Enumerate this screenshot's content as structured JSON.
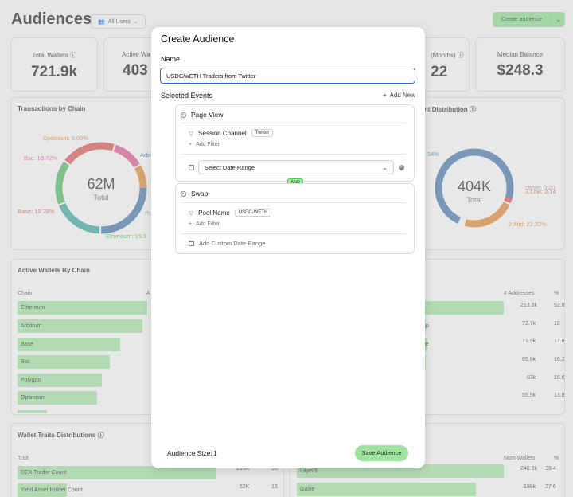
{
  "page": {
    "title": "Audiences",
    "filter_label": "All Users",
    "create_label": "Create audience"
  },
  "stats": [
    {
      "label": "Total Wallets",
      "value": "721.9k"
    },
    {
      "label": "Active Wa",
      "value": "403"
    },
    {
      "label": "(Months)",
      "value": "22"
    },
    {
      "label": "Median Balance",
      "value": "$248.3"
    }
  ],
  "tx_chart": {
    "title": "Transactions by Chain",
    "center_value": "62M",
    "center_label": "Total",
    "labels": [
      "Optimism: 9.00%",
      "Bsc: 16.72%",
      "Base: 19.78%",
      "Ethereum: 15.9",
      "Arbi",
      "Po"
    ]
  },
  "dist_chart": {
    "title": "nt Distribution",
    "center_value": "404K",
    "center_label": "Total",
    "labels": [
      "34%",
      "Other: 0.20",
      "3.Low: 2.14",
      "2.Mid: 22.32%"
    ]
  },
  "active_wallets": {
    "title": "Active Wallets By Chain",
    "col_chain": "Chain",
    "col_a": "A",
    "rows": [
      "Ethereum",
      "Arbitrum",
      "Base",
      "Bsc",
      "Polygon",
      "Optimism"
    ]
  },
  "right_table": {
    "col_addresses": "# Addresses",
    "col_pct": "%",
    "rows": [
      {
        "label": "",
        "addresses": "213.3k",
        "pct": "52.8"
      },
      {
        "label": "ap",
        "addresses": "72.7k",
        "pct": "18"
      },
      {
        "label": "ge",
        "addresses": "71.9k",
        "pct": "17.8"
      },
      {
        "label": "",
        "addresses": "65.6k",
        "pct": "16.2"
      },
      {
        "label": "",
        "addresses": "63k",
        "pct": "15.6"
      },
      {
        "label": "",
        "addresses": "55.9k",
        "pct": "13.8"
      }
    ]
  },
  "traits": {
    "title": "Wallet Traits Distributions",
    "col_trait": "Trait",
    "rows": [
      {
        "label": "DEX Trader Count",
        "count": "213K",
        "pct": "53"
      },
      {
        "label": "Yield Asset Holder Count",
        "count": "52K",
        "pct": "13"
      }
    ]
  },
  "wallets_table": {
    "col_num": "Num Wallets",
    "col_pct": "%",
    "rows": [
      {
        "label": "Layer3",
        "num": "240.9k",
        "pct": "33.4"
      },
      {
        "label": "Galxe",
        "num": "199k",
        "pct": "27.6"
      }
    ]
  },
  "modal": {
    "title": "Create Audience",
    "name_label": "Name",
    "name_value": "USDC/wETH Traders from Twitter",
    "selected_events_label": "Selected Events",
    "add_new_label": "Add New",
    "event1": {
      "name": "Page View",
      "filter_name": "Session Channel",
      "filter_tag": "Twitter",
      "add_filter": "Add Filter",
      "date_select": "Select Date Range"
    },
    "and_label": "AND",
    "event2": {
      "name": "Swap",
      "filter_name": "Pool Name",
      "filter_tag": "USDC-WETH",
      "add_filter": "Add Filter",
      "custom_date": "Add Custom Date Range"
    },
    "audience_size_label": "Audience Size:",
    "audience_size_value": "1",
    "save_label": "Save Audience"
  },
  "colors": {
    "accent_green": "#86d98a",
    "input_border": "#2d5fd6",
    "donut": [
      "#3a6ea5",
      "#2fa39a",
      "#48b35a",
      "#d94b4b",
      "#d8508f",
      "#d98127"
    ]
  }
}
